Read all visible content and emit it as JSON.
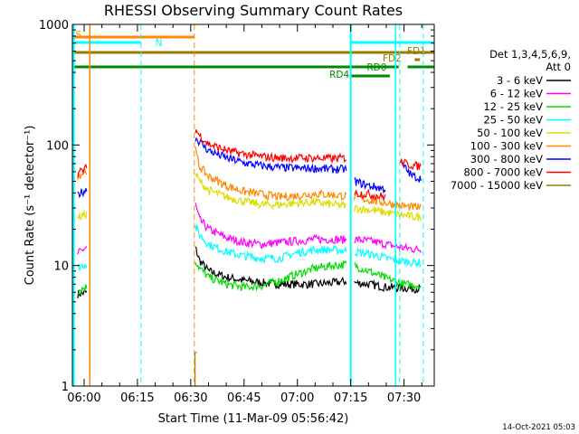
{
  "chart_data": {
    "type": "line",
    "title": "RHESSI Observing Summary Count Rates",
    "xlabel": "Start Time (11-Mar-09 05:56:42)",
    "ylabel": "Count Rate (s⁻¹ detector⁻¹)",
    "yscale": "log",
    "ylim": [
      1,
      1000
    ],
    "xlim_minutes": [
      -3.3,
      98.5
    ],
    "ytick_labels": [
      "1",
      "10",
      "100",
      "1000"
    ],
    "xtick_labels": [
      "06:00",
      "06:15",
      "06:30",
      "06:45",
      "07:00",
      "07:15",
      "07:30"
    ],
    "xtick_minutes": [
      0,
      15,
      30,
      45,
      60,
      75,
      90
    ],
    "legend_header": "Det 1,3,4,5,6,9,",
    "legend_att": "Att 0",
    "series": [
      {
        "name": "3 - 6 keV",
        "color": "#000000",
        "points": [
          [
            -1.8,
            5.8
          ],
          [
            1,
            6.0
          ],
          [
            30.5,
            null
          ],
          [
            31.3,
            14
          ],
          [
            32.5,
            11
          ],
          [
            35,
            9
          ],
          [
            40,
            8
          ],
          [
            45,
            7.5
          ],
          [
            50,
            7.2
          ],
          [
            55,
            7.0
          ],
          [
            60,
            7.0
          ],
          [
            65,
            7.0
          ],
          [
            70,
            7.2
          ],
          [
            74,
            7.4
          ],
          [
            75,
            null
          ],
          [
            76,
            7.2
          ],
          [
            80,
            7.0
          ],
          [
            85,
            6.6
          ],
          [
            90,
            6.5
          ],
          [
            95,
            6.4
          ]
        ]
      },
      {
        "name": "6 - 12 keV",
        "color": "#ff00ff",
        "points": [
          [
            -1.8,
            12.5
          ],
          [
            1,
            14.5
          ],
          [
            30.5,
            null
          ],
          [
            31.3,
            32
          ],
          [
            32.5,
            24
          ],
          [
            35,
            20
          ],
          [
            40,
            17
          ],
          [
            45,
            15.5
          ],
          [
            50,
            15
          ],
          [
            55,
            15.5
          ],
          [
            60,
            16
          ],
          [
            65,
            16.5
          ],
          [
            70,
            16.5
          ],
          [
            74,
            16.3
          ],
          [
            75,
            null
          ],
          [
            76,
            16.5
          ],
          [
            80,
            16
          ],
          [
            85,
            15
          ],
          [
            90,
            14
          ],
          [
            95,
            13.5
          ]
        ]
      },
      {
        "name": "12 - 25 keV",
        "color": "#00dd00",
        "points": [
          [
            -1.8,
            6.2
          ],
          [
            1,
            6.7
          ],
          [
            30.5,
            null
          ],
          [
            31.3,
            11
          ],
          [
            32.5,
            9.5
          ],
          [
            35,
            8
          ],
          [
            40,
            7
          ],
          [
            45,
            6.6
          ],
          [
            50,
            6.8
          ],
          [
            55,
            7.5
          ],
          [
            60,
            8.5
          ],
          [
            65,
            9.5
          ],
          [
            70,
            10
          ],
          [
            74,
            10.2
          ],
          [
            75,
            null
          ],
          [
            76,
            10
          ],
          [
            80,
            9
          ],
          [
            85,
            7.8
          ],
          [
            90,
            7
          ],
          [
            95,
            6.8
          ]
        ]
      },
      {
        "name": "25 - 50 keV",
        "color": "#00ffff",
        "points": [
          [
            -1.8,
            9.6
          ],
          [
            1,
            10.5
          ],
          [
            30.5,
            null
          ],
          [
            31.3,
            21
          ],
          [
            32.5,
            18
          ],
          [
            35,
            15
          ],
          [
            40,
            13
          ],
          [
            45,
            12
          ],
          [
            50,
            11.5
          ],
          [
            55,
            11.5
          ],
          [
            60,
            12.8
          ],
          [
            65,
            13.5
          ],
          [
            70,
            13.5
          ],
          [
            74,
            13.2
          ],
          [
            75,
            null
          ],
          [
            76,
            13
          ],
          [
            80,
            12.5
          ],
          [
            85,
            11.5
          ],
          [
            90,
            10.8
          ],
          [
            95,
            10.5
          ]
        ]
      },
      {
        "name": "50 - 100 keV",
        "color": "#dddd00",
        "points": [
          [
            -1.8,
            25
          ],
          [
            1,
            27
          ],
          [
            30.5,
            null
          ],
          [
            31.3,
            58
          ],
          [
            32.5,
            50
          ],
          [
            35,
            42
          ],
          [
            40,
            37
          ],
          [
            45,
            34
          ],
          [
            50,
            32
          ],
          [
            55,
            32
          ],
          [
            60,
            33
          ],
          [
            65,
            33.5
          ],
          [
            70,
            32
          ],
          [
            74,
            31
          ],
          [
            75,
            null
          ],
          [
            76,
            30
          ],
          [
            80,
            29
          ],
          [
            85,
            27.5
          ],
          [
            90,
            26
          ],
          [
            95,
            25
          ]
        ]
      },
      {
        "name": "100 - 300 keV",
        "color": "#ff8800",
        "points": [
          [
            -1.8,
            55
          ],
          [
            1,
            62
          ],
          [
            30.5,
            null
          ],
          [
            31.3,
            90
          ],
          [
            32.5,
            66
          ],
          [
            35,
            55
          ],
          [
            40,
            46
          ],
          [
            45,
            41
          ],
          [
            50,
            39
          ],
          [
            55,
            37
          ],
          [
            60,
            38
          ],
          [
            65,
            39.5
          ],
          [
            70,
            38.5
          ],
          [
            74,
            37.5
          ],
          [
            75,
            null
          ],
          [
            76,
            37
          ],
          [
            80,
            35
          ],
          [
            85,
            33
          ],
          [
            90,
            31
          ],
          [
            95,
            30
          ]
        ]
      },
      {
        "name": "300 - 800 keV",
        "color": "#0000ff",
        "points": [
          [
            -1.8,
            39
          ],
          [
            1,
            43
          ],
          [
            30.5,
            null
          ],
          [
            31.3,
            115
          ],
          [
            32.5,
            106
          ],
          [
            35,
            90
          ],
          [
            40,
            78
          ],
          [
            45,
            71
          ],
          [
            50,
            67
          ],
          [
            55,
            65
          ],
          [
            60,
            64
          ],
          [
            65,
            64
          ],
          [
            70,
            63
          ],
          [
            74,
            63
          ],
          [
            75,
            null
          ],
          [
            76,
            50
          ],
          [
            80,
            46
          ],
          [
            85,
            43
          ],
          [
            88,
            null
          ],
          [
            89,
            72
          ],
          [
            92,
            56
          ],
          [
            95,
            52
          ]
        ]
      },
      {
        "name": "800 - 7000 keV",
        "color": "#ff0000",
        "points": [
          [
            -1.8,
            58
          ],
          [
            1,
            65
          ],
          [
            30.5,
            null
          ],
          [
            31.3,
            135
          ],
          [
            32.5,
            120
          ],
          [
            35,
            102
          ],
          [
            40,
            90
          ],
          [
            45,
            84
          ],
          [
            50,
            80
          ],
          [
            55,
            78
          ],
          [
            60,
            78
          ],
          [
            65,
            78
          ],
          [
            70,
            77
          ],
          [
            74,
            78
          ],
          [
            75,
            null
          ],
          [
            76,
            40
          ],
          [
            80,
            39
          ],
          [
            85,
            37
          ],
          [
            88,
            null
          ],
          [
            89,
            72
          ],
          [
            92,
            68
          ],
          [
            95,
            66
          ]
        ]
      },
      {
        "name": "7000 - 15000 keV",
        "color": "#9a7a00",
        "points": [
          [
            31.2,
            1.9
          ],
          [
            33,
            null
          ]
        ]
      }
    ],
    "annotations": [
      {
        "label": "S",
        "color": "#ff8800"
      },
      {
        "label": "N",
        "color": "#00ffff"
      },
      {
        "label": "FD1",
        "color": "#9a7a00"
      },
      {
        "label": "FD2",
        "color": "#9a7a00"
      },
      {
        "label": "RD0",
        "color": "#008800"
      },
      {
        "label": "RD4",
        "color": "#008800"
      }
    ]
  },
  "footer": {
    "date_stamp": "14-Oct-2021 05:03"
  }
}
